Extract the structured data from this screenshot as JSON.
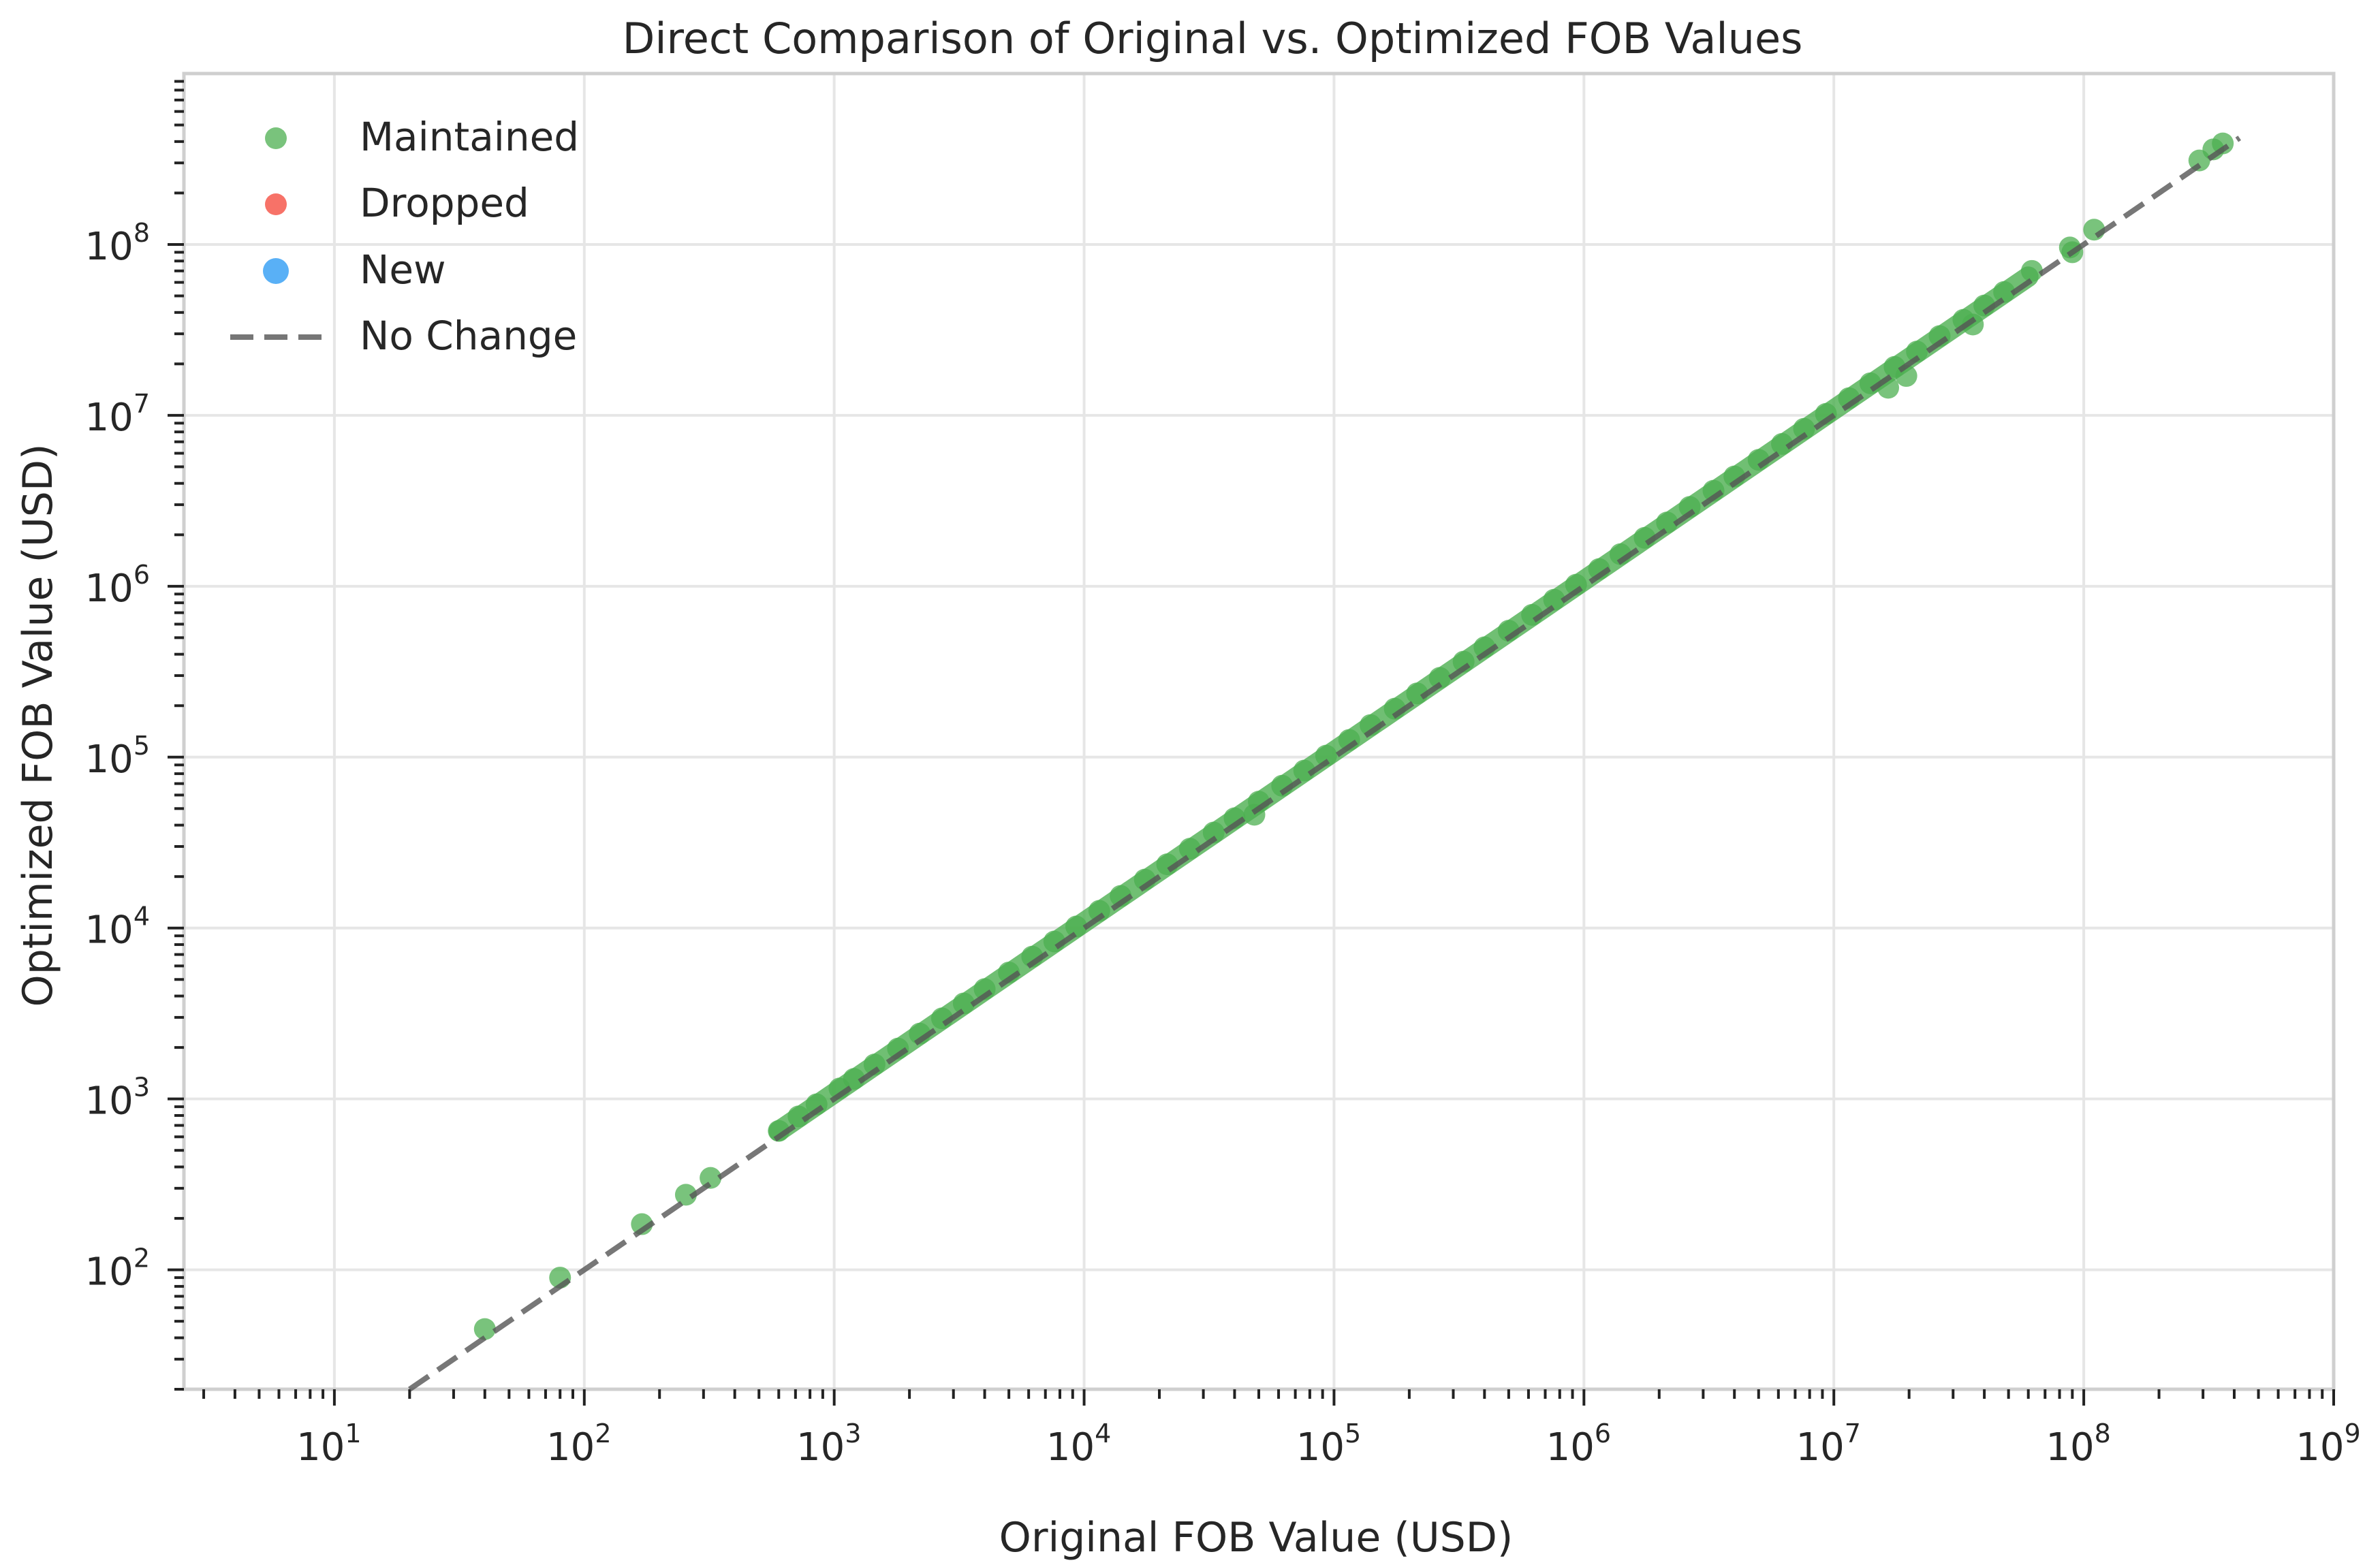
{
  "chart_data": {
    "type": "scatter",
    "title": "Direct Comparison of Original vs. Optimized FOB Values",
    "xlabel": "Original FOB Value (USD)",
    "ylabel": "Optimized FOB Value (USD)",
    "xscale": "log",
    "yscale": "log",
    "xlim": [
      2.5,
      1000000000
    ],
    "ylim": [
      20,
      1000000000
    ],
    "grid": true,
    "legend_placement": "top-left",
    "x_ticks": [
      {
        "base": "10",
        "exp": "1"
      },
      {
        "base": "10",
        "exp": "2"
      },
      {
        "base": "10",
        "exp": "3"
      },
      {
        "base": "10",
        "exp": "4"
      },
      {
        "base": "10",
        "exp": "5"
      },
      {
        "base": "10",
        "exp": "6"
      },
      {
        "base": "10",
        "exp": "7"
      },
      {
        "base": "10",
        "exp": "8"
      },
      {
        "base": "10",
        "exp": "9"
      }
    ],
    "y_ticks": [
      {
        "base": "10",
        "exp": "2"
      },
      {
        "base": "10",
        "exp": "3"
      },
      {
        "base": "10",
        "exp": "4"
      },
      {
        "base": "10",
        "exp": "5"
      },
      {
        "base": "10",
        "exp": "6"
      },
      {
        "base": "10",
        "exp": "7"
      },
      {
        "base": "10",
        "exp": "8"
      }
    ],
    "series": [
      {
        "name": "Maintained",
        "color": "#4caf50",
        "points": [
          [
            40,
            45
          ],
          [
            80,
            90
          ],
          [
            170,
            185
          ],
          [
            255,
            275
          ],
          [
            320,
            345
          ],
          [
            600,
            650
          ],
          [
            720,
            790
          ],
          [
            850,
            930
          ],
          [
            1050,
            1150
          ],
          [
            1200,
            1310
          ],
          [
            1450,
            1590
          ],
          [
            1800,
            1970
          ],
          [
            2200,
            2410
          ],
          [
            2700,
            2960
          ],
          [
            3300,
            3620
          ],
          [
            4000,
            4390
          ],
          [
            5000,
            5490
          ],
          [
            6200,
            6800
          ],
          [
            7600,
            8340
          ],
          [
            9300,
            10200
          ],
          [
            11500,
            12600
          ],
          [
            14000,
            15400
          ],
          [
            17500,
            19200
          ],
          [
            21500,
            23600
          ],
          [
            26500,
            29100
          ],
          [
            33000,
            36200
          ],
          [
            40000,
            43900
          ],
          [
            48000,
            46000
          ],
          [
            50000,
            54900
          ],
          [
            62000,
            68000
          ],
          [
            76000,
            83400
          ],
          [
            93000,
            102000
          ],
          [
            115000,
            126000
          ],
          [
            140000,
            154000
          ],
          [
            175000,
            192000
          ],
          [
            215000,
            236000
          ],
          [
            265000,
            291000
          ],
          [
            330000,
            362000
          ],
          [
            400000,
            439000
          ],
          [
            500000,
            549000
          ],
          [
            620000,
            680000
          ],
          [
            760000,
            834000
          ],
          [
            930000,
            1020000
          ],
          [
            1150000,
            1260000
          ],
          [
            1400000,
            1540000
          ],
          [
            1750000,
            1920000
          ],
          [
            2150000,
            2360000
          ],
          [
            2650000,
            2910000
          ],
          [
            3300000,
            3620000
          ],
          [
            4000000,
            4390000
          ],
          [
            5000000,
            5490000
          ],
          [
            6200000,
            6800000
          ],
          [
            7600000,
            8340000
          ],
          [
            9300000,
            10200000
          ],
          [
            11500000,
            12600000
          ],
          [
            14000000,
            15400000
          ],
          [
            16500000,
            14500000
          ],
          [
            17500000,
            19200000
          ],
          [
            19500000,
            17000000
          ],
          [
            21500000,
            23600000
          ],
          [
            26500000,
            29100000
          ],
          [
            33000000,
            36200000
          ],
          [
            36000000,
            34000000
          ],
          [
            40000000,
            43900000
          ],
          [
            48000000,
            52700000
          ],
          [
            62000000,
            70000000
          ],
          [
            88000000,
            96000000
          ],
          [
            90000000,
            90000000
          ],
          [
            110000000,
            122000000
          ],
          [
            290000000,
            310000000
          ],
          [
            330000000,
            360000000
          ],
          [
            360000000,
            390000000
          ]
        ]
      },
      {
        "name": "Dropped",
        "color": "#f44336",
        "points": []
      },
      {
        "name": "New",
        "color": "#2196f3",
        "points": []
      }
    ],
    "reference_line": {
      "name": "No Change",
      "color": "#555555",
      "x": [
        20,
        420000000
      ],
      "y": [
        20,
        420000000
      ]
    }
  }
}
